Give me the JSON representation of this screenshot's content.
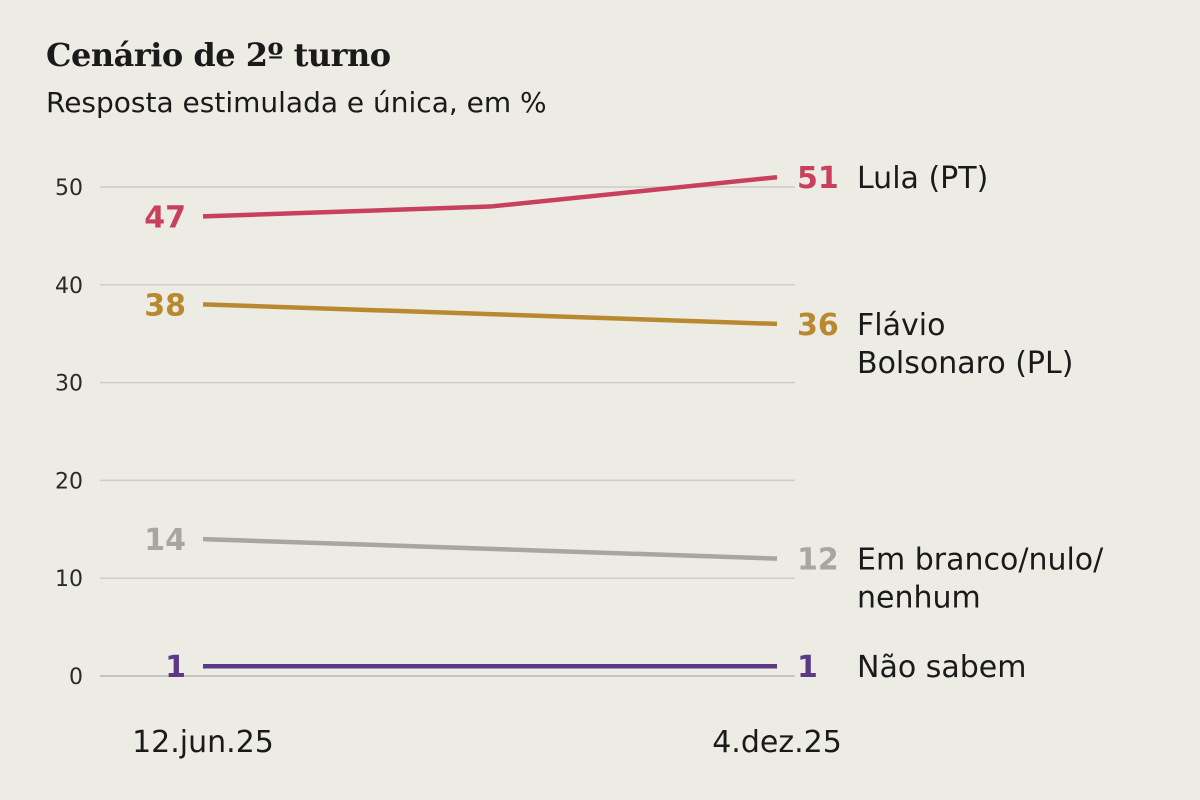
{
  "title": "Cenário de 2º turno",
  "subtitle": "Resposta estimulada e única, em %",
  "chart_data": {
    "type": "line",
    "title": "Cenário de 2º turno",
    "subtitle": "Resposta estimulada e única, em %",
    "x": [
      "12.jun.25",
      "",
      "4.dez.25"
    ],
    "x_tick_labels": [
      "12.jun.25",
      "4.dez.25"
    ],
    "ylim": [
      0,
      52
    ],
    "y_ticks": [
      0,
      10,
      20,
      30,
      40,
      50
    ],
    "grid": true,
    "legend_placement": "right, inline at line ends",
    "series": [
      {
        "name": "Lula (PT)",
        "name_lines": [
          "Lula (PT)"
        ],
        "values": [
          47,
          48,
          51
        ],
        "start_label": "47",
        "end_label": "51",
        "color": "#c8405c"
      },
      {
        "name": "Flávio Bolsonaro (PL)",
        "name_lines": [
          "Flávio",
          "Bolsonaro (PL)"
        ],
        "values": [
          38,
          37,
          36
        ],
        "start_label": "38",
        "end_label": "36",
        "color": "#b8892f"
      },
      {
        "name": "Em branco/nulo/nenhum",
        "name_lines": [
          "Em branco/nulo/",
          "nenhum"
        ],
        "values": [
          14,
          13,
          12
        ],
        "start_label": "14",
        "end_label": "12",
        "color": "#a8a6a1"
      },
      {
        "name": "Não sabem",
        "name_lines": [
          "Não sabem"
        ],
        "values": [
          1,
          1,
          1
        ],
        "start_label": "1",
        "end_label": "1",
        "color": "#5a3a86"
      }
    ]
  }
}
